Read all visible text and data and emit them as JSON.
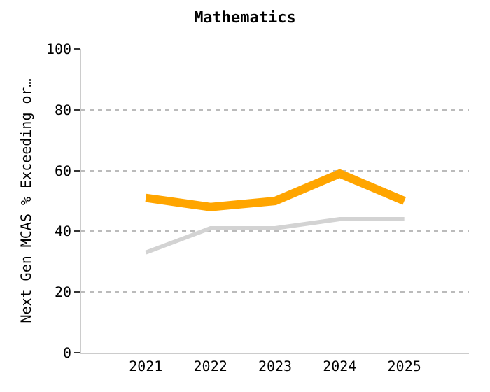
{
  "chart_data": {
    "type": "line",
    "title": "Mathematics",
    "ylabel": "Next Gen MCAS % Exceeding or…",
    "categories": [
      "2021",
      "2022",
      "2023",
      "2024",
      "2025"
    ],
    "series": [
      {
        "color": "#d3d3d3",
        "values": [
          33,
          41,
          41,
          44,
          44
        ]
      },
      {
        "color": "#ffa500",
        "values": [
          51,
          48,
          50,
          59,
          50
        ]
      }
    ],
    "ylim": [
      0,
      100
    ],
    "yticks": [
      0,
      20,
      40,
      60,
      80,
      100
    ],
    "grid": "y",
    "marker": "none",
    "line_style": "solid"
  }
}
